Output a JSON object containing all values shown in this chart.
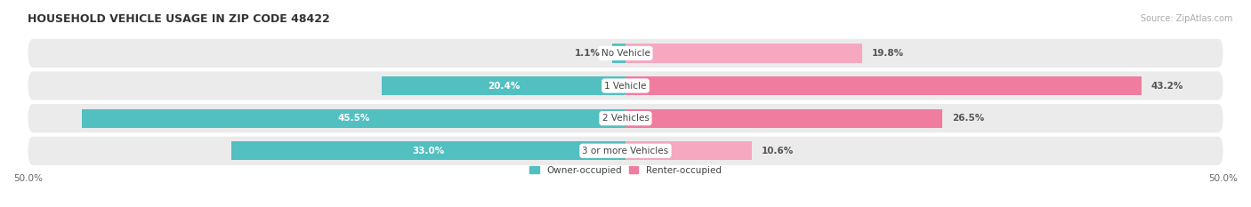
{
  "title": "HOUSEHOLD VEHICLE USAGE IN ZIP CODE 48422",
  "source": "Source: ZipAtlas.com",
  "categories": [
    "No Vehicle",
    "1 Vehicle",
    "2 Vehicles",
    "3 or more Vehicles"
  ],
  "owner_values": [
    1.1,
    20.4,
    45.5,
    33.0
  ],
  "renter_values": [
    19.8,
    43.2,
    26.5,
    10.6
  ],
  "owner_color": "#52bfc1",
  "renter_color": "#f07ca0",
  "renter_color_light": "#f5a8c0",
  "bar_bg_color": "#ebebeb",
  "x_min": -50.0,
  "x_max": 50.0,
  "x_tick_labels": [
    "50.0%",
    "50.0%"
  ],
  "figsize": [
    14.06,
    2.33
  ],
  "dpi": 100,
  "title_fontsize": 9,
  "value_fontsize": 7.5,
  "cat_fontsize": 7.5,
  "tick_fontsize": 7.5,
  "legend_fontsize": 7.5,
  "source_fontsize": 7
}
